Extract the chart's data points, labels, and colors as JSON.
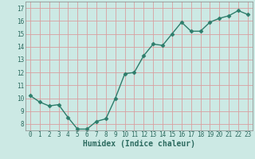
{
  "x": [
    0,
    1,
    2,
    3,
    4,
    5,
    6,
    7,
    8,
    9,
    10,
    11,
    12,
    13,
    14,
    15,
    16,
    17,
    18,
    19,
    20,
    21,
    22,
    23
  ],
  "y": [
    10.2,
    9.7,
    9.4,
    9.5,
    8.5,
    7.6,
    7.6,
    8.2,
    8.4,
    10.0,
    11.9,
    12.0,
    13.3,
    14.2,
    14.1,
    15.0,
    15.9,
    15.2,
    15.2,
    15.9,
    16.2,
    16.4,
    16.8,
    16.5
  ],
  "line_color": "#2d7d6b",
  "marker": "D",
  "marker_size": 2.5,
  "bg_color": "#cce9e4",
  "grid_color_major": "#d9a0a0",
  "grid_color_minor": "#e8c8c8",
  "xlabel": "Humidex (Indice chaleur)",
  "ylim": [
    7.5,
    17.5
  ],
  "xlim": [
    -0.5,
    23.5
  ],
  "yticks": [
    8,
    9,
    10,
    11,
    12,
    13,
    14,
    15,
    16,
    17
  ],
  "xticks": [
    0,
    1,
    2,
    3,
    4,
    5,
    6,
    7,
    8,
    9,
    10,
    11,
    12,
    13,
    14,
    15,
    16,
    17,
    18,
    19,
    20,
    21,
    22,
    23
  ],
  "tick_fontsize": 5.5,
  "xlabel_fontsize": 7,
  "line_width": 1.0
}
